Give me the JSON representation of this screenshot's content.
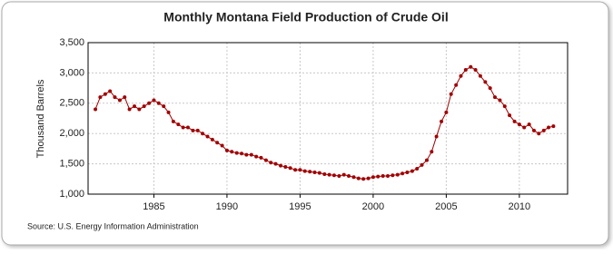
{
  "chart_data": {
    "type": "line",
    "title": "Monthly Montana Field Production of Crude Oil",
    "y_label": "Thousand Barrels",
    "source": "Source: U.S. Energy Information Administration",
    "x": [
      1981,
      1981.33,
      1981.67,
      1982,
      1982.33,
      1982.67,
      1983,
      1983.33,
      1983.67,
      1984,
      1984.33,
      1984.67,
      1985,
      1985.33,
      1985.67,
      1986,
      1986.33,
      1986.67,
      1987,
      1987.33,
      1987.67,
      1988,
      1988.33,
      1988.67,
      1989,
      1989.33,
      1989.67,
      1990,
      1990.33,
      1990.67,
      1991,
      1991.33,
      1991.67,
      1992,
      1992.33,
      1992.67,
      1993,
      1993.33,
      1993.67,
      1994,
      1994.33,
      1994.67,
      1995,
      1995.33,
      1995.67,
      1996,
      1996.33,
      1996.67,
      1997,
      1997.33,
      1997.67,
      1998,
      1998.33,
      1998.67,
      1999,
      1999.33,
      1999.67,
      2000,
      2000.33,
      2000.67,
      2001,
      2001.33,
      2001.67,
      2002,
      2002.33,
      2002.67,
      2003,
      2003.33,
      2003.67,
      2004,
      2004.33,
      2004.67,
      2005,
      2005.33,
      2005.67,
      2006,
      2006.33,
      2006.67,
      2007,
      2007.33,
      2007.67,
      2008,
      2008.33,
      2008.67,
      2009,
      2009.33,
      2009.67,
      2010,
      2010.33,
      2010.67,
      2011,
      2011.33,
      2011.67,
      2012,
      2012.33
    ],
    "series": [
      {
        "name": "Montana Field Production of Crude Oil",
        "color": "#a00000",
        "values": [
          2400,
          2600,
          2650,
          2700,
          2600,
          2550,
          2600,
          2400,
          2450,
          2400,
          2450,
          2500,
          2550,
          2500,
          2450,
          2350,
          2200,
          2150,
          2100,
          2100,
          2050,
          2050,
          2000,
          1950,
          1900,
          1850,
          1800,
          1720,
          1700,
          1680,
          1670,
          1650,
          1650,
          1620,
          1600,
          1560,
          1520,
          1500,
          1470,
          1450,
          1430,
          1400,
          1400,
          1380,
          1370,
          1360,
          1350,
          1330,
          1320,
          1310,
          1300,
          1320,
          1300,
          1280,
          1260,
          1250,
          1260,
          1280,
          1290,
          1300,
          1300,
          1310,
          1320,
          1340,
          1360,
          1380,
          1420,
          1480,
          1560,
          1700,
          1950,
          2200,
          2350,
          2650,
          2800,
          2950,
          3050,
          3100,
          3050,
          2950,
          2850,
          2750,
          2600,
          2550,
          2450,
          2300,
          2200,
          2150,
          2100,
          2150,
          2050,
          2000,
          2050,
          2100,
          2120
        ]
      }
    ],
    "xlim": [
      1980.5,
      2013.3
    ],
    "xticks": [
      1985,
      1990,
      1995,
      2000,
      2005,
      2010
    ],
    "ylim": [
      1000,
      3500
    ],
    "yticks": [
      {
        "value": 1000,
        "label": "1,000"
      },
      {
        "value": 1500,
        "label": "1,500"
      },
      {
        "value": 2000,
        "label": "2,000"
      },
      {
        "value": 2500,
        "label": "2,500"
      },
      {
        "value": 3000,
        "label": "3,000"
      },
      {
        "value": 3500,
        "label": "3,500"
      }
    ],
    "grid": true
  }
}
